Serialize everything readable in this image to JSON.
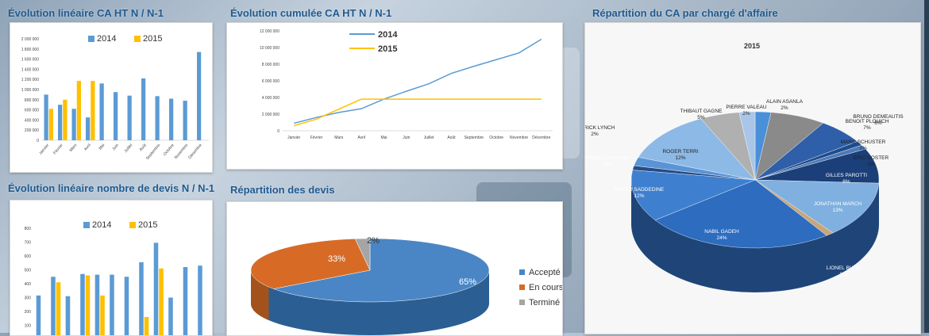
{
  "titles": {
    "lin_ca": "Évolution linéaire CA HT N / N-1",
    "cum_ca": "Évolution cumulée CA HT N / N-1",
    "rep_ca": "Répartition du CA par chargé d'affaire",
    "lin_devis": "Évolution linéaire nombre de devis N / N-1",
    "rep_devis": "Répartition des devis"
  },
  "colors": {
    "s2014": "#5b9bd5",
    "s2015": "#ffc000",
    "accepte": "#4a86c5",
    "encours": "#d76b26",
    "termine": "#a5a5a5"
  },
  "chart_data": [
    {
      "type": "bar",
      "categories": [
        "Janvier",
        "Février",
        "Mars",
        "Avril",
        "Mai",
        "Juin",
        "Juillet",
        "Août",
        "Septembre",
        "Octobre",
        "Novembre",
        "Décembre"
      ],
      "series": [
        {
          "name": "2014",
          "values": [
            900000,
            700000,
            620000,
            450000,
            1120000,
            950000,
            880000,
            1220000,
            870000,
            820000,
            780000,
            1740000
          ]
        },
        {
          "name": "2015",
          "values": [
            620000,
            800000,
            1170000,
            1170000,
            null,
            null,
            null,
            null,
            null,
            null,
            null,
            null
          ]
        }
      ],
      "ylim": [
        0,
        2000000
      ],
      "yticks": [
        "0",
        "200 000",
        "400 000",
        "600 000",
        "800 000",
        "1 000 000",
        "1 200 000",
        "1 400 000",
        "1 600 000",
        "1 800 000",
        "2 000 000"
      ],
      "legend": "top"
    },
    {
      "type": "line",
      "categories": [
        "Janvier",
        "Février",
        "Mars",
        "Avril",
        "Mai",
        "Juin",
        "Juillet",
        "Août",
        "Septembre",
        "Octobre",
        "Novembre",
        "Décembre"
      ],
      "series": [
        {
          "name": "2014",
          "values": [
            900000,
            1600000,
            2200000,
            2650000,
            3800000,
            4750000,
            5650000,
            6900000,
            7750000,
            8550000,
            9350000,
            11000000
          ]
        },
        {
          "name": "2015",
          "values": [
            600000,
            1400000,
            2600000,
            3800000,
            3800000,
            3800000,
            3800000,
            3800000,
            3800000,
            3800000,
            3800000,
            3800000
          ]
        }
      ],
      "ylim": [
        0,
        12000000
      ],
      "yticks": [
        "0",
        "2 000 000",
        "4 000 000",
        "6 000 000",
        "8 000 000",
        "10 000 000",
        "12 000 000"
      ],
      "legend": "top-left"
    },
    {
      "type": "bar",
      "categories": [
        "Janvier",
        "Février",
        "Mars",
        "Avril",
        "Mai",
        "Juin",
        "Juillet",
        "Août",
        "Septembre",
        "Octobre",
        "Novembre",
        "Décembre"
      ],
      "series": [
        {
          "name": "2014",
          "values": [
            315,
            450,
            310,
            470,
            465,
            465,
            450,
            555,
            695,
            300,
            520,
            530
          ]
        },
        {
          "name": "2015",
          "values": [
            null,
            410,
            null,
            460,
            315,
            null,
            null,
            160,
            510,
            null,
            null,
            null
          ]
        }
      ],
      "ylim": [
        0,
        800
      ],
      "yticks": [
        "100",
        "200",
        "300",
        "400",
        "500",
        "600",
        "700",
        "800"
      ],
      "legend": "top"
    },
    {
      "type": "pie",
      "labels": [
        "Accepté",
        "En cours",
        "Terminé"
      ],
      "values": [
        65,
        33,
        2
      ],
      "data_labels": [
        "65%",
        "33%",
        "2%"
      ],
      "legend": "right"
    },
    {
      "type": "pie",
      "title": "2015",
      "slices": [
        {
          "name": "ALAIN ASANLA",
          "pct": "2%",
          "value": 2
        },
        {
          "name": "BENOIT PLOUICH",
          "pct": "7%",
          "value": 7
        },
        {
          "name": "BRUNO DEMEAUTIS",
          "pct": "6%",
          "value": 6
        },
        {
          "name": "MARC SCHUSTER",
          "pct": "1%",
          "value": 1
        },
        {
          "name": "ERIC COSTER",
          "pct": "1%",
          "value": 1
        },
        {
          "name": "GILLES PAROTTI",
          "pct": "8%",
          "value": 8
        },
        {
          "name": "JONATHAN MARCH",
          "pct": "13%",
          "value": 13
        },
        {
          "name": "LIONEL BUSS",
          "pct": "1%",
          "value": 1
        },
        {
          "name": "NABIL GADEH",
          "pct": "24%",
          "value": 24
        },
        {
          "name": "NACER SADDEDINE",
          "pct": "12%",
          "value": 12
        },
        {
          "name": "PABLO SALGADO",
          "pct": "1%",
          "value": 1
        },
        {
          "name": "PATRICK LYNCH",
          "pct": "2%",
          "value": 2
        },
        {
          "name": "ROGER TERRI",
          "pct": "12%",
          "value": 12
        },
        {
          "name": "THIBAUT GAGNE",
          "pct": "5%",
          "value": 5
        },
        {
          "name": "PIERRE VALEAU",
          "pct": "2%",
          "value": 2
        }
      ]
    }
  ]
}
